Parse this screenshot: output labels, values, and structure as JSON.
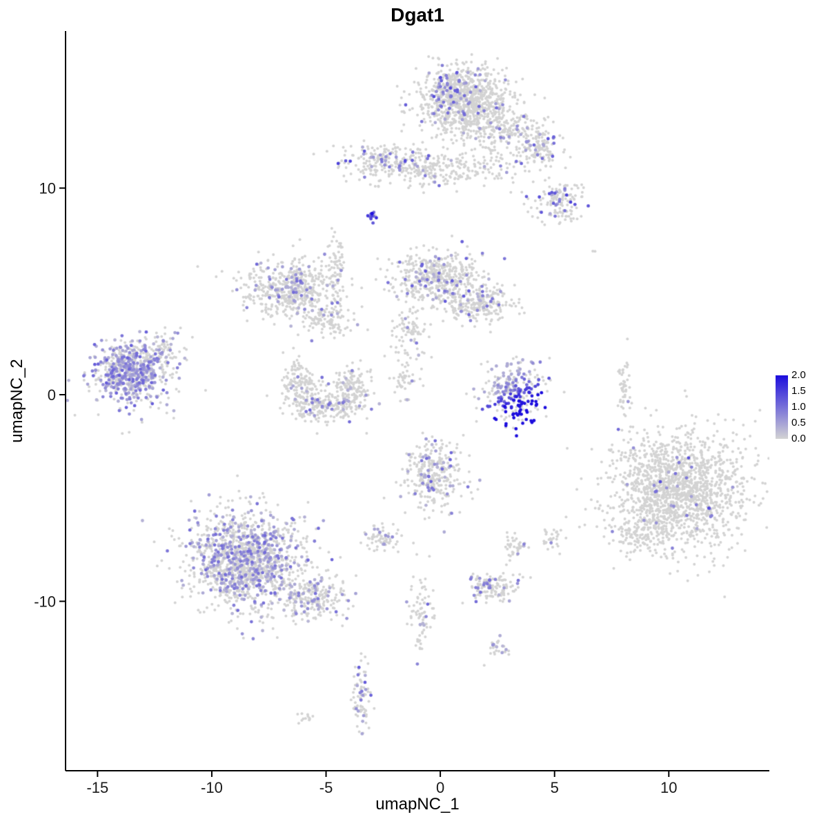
{
  "chart_data": {
    "type": "scatter",
    "title": "Dgat1",
    "xlabel": "umapNC_1",
    "ylabel": "umapNC_2",
    "xlim": [
      -16.4,
      14.4
    ],
    "ylim": [
      -18.2,
      17.6
    ],
    "x_ticks": [
      -15,
      -10,
      -5,
      0,
      5,
      10
    ],
    "y_ticks": [
      -10,
      0,
      10
    ],
    "grid": false,
    "background": "#ffffff",
    "axis_color": "#000000",
    "tick_label_color": "#1a1a1a",
    "legend": {
      "position": "right",
      "labels": [
        "2.0",
        "1.5",
        "1.0",
        "0.5",
        "0.0"
      ],
      "min": 0,
      "max": 2,
      "low_color": "#d3d3d3",
      "high_color": "#1c0ddd"
    },
    "clusters": [
      {
        "name": "top-main",
        "cx": 1.1,
        "cy": 14.2,
        "sx": 1.0,
        "sy": 0.8,
        "n": 950,
        "frac": 0.06,
        "lo": 0.4,
        "hi": 1.2
      },
      {
        "name": "top-left-edge",
        "cx": 0.3,
        "cy": 15.2,
        "sx": 0.4,
        "sy": 0.35,
        "n": 60,
        "frac": 0.25,
        "lo": 0.5,
        "hi": 1.4
      },
      {
        "name": "top-arm",
        "cx": 3.0,
        "cy": 12.9,
        "sx": 0.85,
        "sy": 0.45,
        "n": 180,
        "frac": 0.08,
        "lo": 0.4,
        "hi": 1.2
      },
      {
        "name": "top-right-blob",
        "cx": 4.4,
        "cy": 11.9,
        "sx": 0.5,
        "sy": 0.45,
        "n": 110,
        "frac": 0.14,
        "lo": 0.4,
        "hi": 1.4
      },
      {
        "name": "top-right-lower",
        "cx": 5.2,
        "cy": 9.3,
        "sx": 0.65,
        "sy": 0.5,
        "n": 140,
        "frac": 0.18,
        "lo": 0.4,
        "hi": 1.5
      },
      {
        "name": "upper-left-ridge",
        "cx": -2.6,
        "cy": 11.3,
        "sx": 0.95,
        "sy": 0.45,
        "n": 190,
        "frac": 0.14,
        "lo": 0.4,
        "hi": 1.5
      },
      {
        "name": "upper-mid-ridge",
        "cx": -0.4,
        "cy": 10.9,
        "sx": 1.0,
        "sy": 0.45,
        "n": 160,
        "frac": 0.08,
        "lo": 0.4,
        "hi": 1.1
      },
      {
        "name": "upper-chain",
        "cx": 1.9,
        "cy": 11.1,
        "sx": 1.1,
        "sy": 0.5,
        "n": 100,
        "frac": 0.06,
        "lo": 0.4,
        "hi": 1.0
      },
      {
        "name": "mini-dark-clump",
        "cx": -2.95,
        "cy": 8.65,
        "sx": 0.13,
        "sy": 0.2,
        "n": 15,
        "frac": 0.85,
        "lo": 1.0,
        "hi": 2.0
      },
      {
        "name": "mid-left",
        "cx": -6.5,
        "cy": 5.1,
        "sx": 1.0,
        "sy": 0.7,
        "n": 550,
        "frac": 0.1,
        "lo": 0.3,
        "hi": 1.1
      },
      {
        "name": "mid-left-arm",
        "cx": -4.8,
        "cy": 3.7,
        "sx": 0.55,
        "sy": 0.4,
        "n": 100,
        "frac": 0.08,
        "lo": 0.3,
        "hi": 1.0
      },
      {
        "name": "vertical-strand",
        "cx": -4.55,
        "cy": 6.2,
        "sx": 0.18,
        "sy": 1.0,
        "n": 70,
        "frac": 0.08,
        "lo": 0.3,
        "hi": 1.0
      },
      {
        "name": "mid-center-top",
        "cx": -0.1,
        "cy": 5.7,
        "sx": 0.95,
        "sy": 0.6,
        "n": 480,
        "frac": 0.1,
        "lo": 0.3,
        "hi": 1.3
      },
      {
        "name": "mid-center-right",
        "cx": 1.7,
        "cy": 4.4,
        "sx": 0.8,
        "sy": 0.45,
        "n": 240,
        "frac": 0.08,
        "lo": 0.3,
        "hi": 1.1
      },
      {
        "name": "mid-center-tail",
        "cx": -1.2,
        "cy": 3.0,
        "sx": 0.45,
        "sy": 0.7,
        "n": 90,
        "frac": 0.08,
        "lo": 0.3,
        "hi": 1.0
      },
      {
        "name": "left-core",
        "cx": -13.6,
        "cy": 1.1,
        "sx": 0.75,
        "sy": 0.65,
        "n": 520,
        "frac": 0.5,
        "lo": 0.3,
        "hi": 1.2
      },
      {
        "name": "left-halo",
        "cx": -13.3,
        "cy": 1.0,
        "sx": 1.2,
        "sy": 1.0,
        "n": 160,
        "frac": 0.3,
        "lo": 0.3,
        "hi": 1.0
      },
      {
        "name": "left-arm",
        "cx": -12.1,
        "cy": 2.2,
        "sx": 0.3,
        "sy": 0.45,
        "n": 50,
        "frac": 0.2,
        "lo": 0.3,
        "hi": 0.9
      },
      {
        "name": "crescent-left",
        "cx": -6.1,
        "cy": 0.5,
        "sx": 0.4,
        "sy": 0.6,
        "n": 150,
        "frac": 0.08,
        "lo": 0.3,
        "hi": 1.0
      },
      {
        "name": "crescent-bottom",
        "cx": -5.0,
        "cy": -0.6,
        "sx": 0.85,
        "sy": 0.4,
        "n": 220,
        "frac": 0.1,
        "lo": 0.3,
        "hi": 1.1
      },
      {
        "name": "crescent-right",
        "cx": -3.9,
        "cy": 0.4,
        "sx": 0.35,
        "sy": 0.55,
        "n": 130,
        "frac": 0.08,
        "lo": 0.3,
        "hi": 1.0
      },
      {
        "name": "center-strand",
        "cx": -1.4,
        "cy": 0.8,
        "sx": 0.3,
        "sy": 0.5,
        "n": 40,
        "frac": 0.1,
        "lo": 0.3,
        "hi": 0.9
      },
      {
        "name": "high-expression-cluster",
        "cx": 3.2,
        "cy": 0.1,
        "sx": 0.7,
        "sy": 0.7,
        "n": 280,
        "frac": 0.5,
        "lo": 0.4,
        "hi": 2.0,
        "grad": [
          0.3,
          -0.45
        ]
      },
      {
        "name": "right-strand",
        "cx": 8.05,
        "cy": 0.3,
        "sx": 0.15,
        "sy": 0.8,
        "n": 50,
        "frac": 0.04,
        "lo": 0.3,
        "hi": 0.8
      },
      {
        "name": "right-big",
        "cx": 10.4,
        "cy": -4.6,
        "sx": 1.45,
        "sy": 1.35,
        "n": 1600,
        "frac": 0.02,
        "lo": 0.4,
        "hi": 1.5
      },
      {
        "name": "right-big-tail",
        "cx": 8.5,
        "cy": -6.7,
        "sx": 0.55,
        "sy": 0.5,
        "n": 90,
        "frac": 0.03,
        "lo": 0.3,
        "hi": 1.0
      },
      {
        "name": "bottom-left-big",
        "cx": -8.5,
        "cy": -8.0,
        "sx": 1.25,
        "sy": 1.15,
        "n": 1400,
        "frac": 0.3,
        "lo": 0.3,
        "hi": 1.1
      },
      {
        "name": "bottom-left-arm",
        "cx": -5.6,
        "cy": -9.8,
        "sx": 0.8,
        "sy": 0.5,
        "n": 220,
        "frac": 0.15,
        "lo": 0.3,
        "hi": 1.0
      },
      {
        "name": "center-bottom",
        "cx": -0.3,
        "cy": -3.9,
        "sx": 0.7,
        "sy": 0.85,
        "n": 300,
        "frac": 0.12,
        "lo": 0.3,
        "hi": 1.2
      },
      {
        "name": "small-left-bottom",
        "cx": -2.5,
        "cy": -6.9,
        "sx": 0.45,
        "sy": 0.35,
        "n": 65,
        "frac": 0.12,
        "lo": 0.3,
        "hi": 1.0
      },
      {
        "name": "small-blob-right1",
        "cx": 3.3,
        "cy": -7.3,
        "sx": 0.3,
        "sy": 0.35,
        "n": 40,
        "frac": 0.1,
        "lo": 0.3,
        "hi": 0.9
      },
      {
        "name": "small-blob-right2",
        "cx": 4.9,
        "cy": -7.0,
        "sx": 0.25,
        "sy": 0.3,
        "n": 30,
        "frac": 0.08,
        "lo": 0.3,
        "hi": 0.9
      },
      {
        "name": "bottom-mid-cluster",
        "cx": 2.3,
        "cy": -9.3,
        "sx": 0.55,
        "sy": 0.4,
        "n": 130,
        "frac": 0.15,
        "lo": 0.3,
        "hi": 1.1
      },
      {
        "name": "strand-below-center",
        "cx": -0.8,
        "cy": -10.7,
        "sx": 0.3,
        "sy": 1.0,
        "n": 80,
        "frac": 0.1,
        "lo": 0.3,
        "hi": 1.1
      },
      {
        "name": "tiny-blob",
        "cx": 2.5,
        "cy": -12.2,
        "sx": 0.25,
        "sy": 0.3,
        "n": 30,
        "frac": 0.08,
        "lo": 0.3,
        "hi": 0.9
      },
      {
        "name": "bottom-strand",
        "cx": -3.45,
        "cy": -14.6,
        "sx": 0.2,
        "sy": 1.0,
        "n": 80,
        "frac": 0.22,
        "lo": 0.4,
        "hi": 1.3
      },
      {
        "name": "tiny-bottom-left",
        "cx": -5.9,
        "cy": -15.6,
        "sx": 0.18,
        "sy": 0.18,
        "n": 12,
        "frac": 0.05,
        "lo": 0.3,
        "hi": 0.8
      },
      {
        "name": "isolated-dot-right",
        "cx": 6.7,
        "cy": 6.9,
        "sx": 0.06,
        "sy": 0.06,
        "n": 2,
        "frac": 0,
        "lo": 0,
        "hi": 0
      },
      {
        "name": "isolated-dot-left",
        "cx": -10.6,
        "cy": 6.2,
        "sx": 0.05,
        "sy": 0.05,
        "n": 1,
        "frac": 0,
        "lo": 0,
        "hi": 0
      }
    ]
  }
}
